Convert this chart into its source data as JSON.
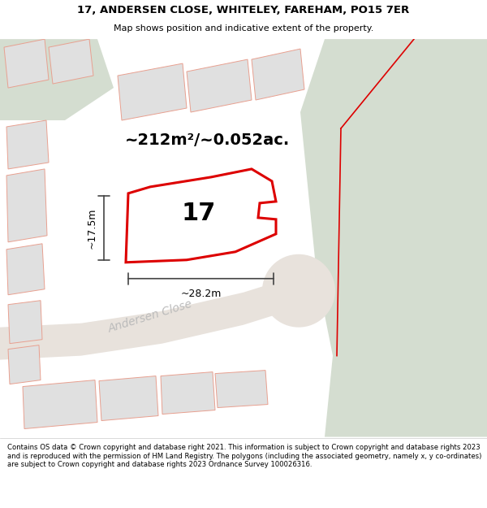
{
  "title_line1": "17, ANDERSEN CLOSE, WHITELEY, FAREHAM, PO15 7ER",
  "title_line2": "Map shows position and indicative extent of the property.",
  "area_label": "~212m²/~0.052ac.",
  "plot_number": "17",
  "dim_width": "~28.2m",
  "dim_height": "~17.5m",
  "street_label": "Andersen Close",
  "footer_text": "Contains OS data © Crown copyright and database right 2021. This information is subject to Crown copyright and database rights 2023 and is reproduced with the permission of HM Land Registry. The polygons (including the associated geometry, namely x, y co-ordinates) are subject to Crown copyright and database rights 2023 Ordnance Survey 100026316.",
  "bg_map_color": "#f0ece8",
  "green_color": "#d4ddd0",
  "road_color": "#e8e2dc",
  "building_fc": "#e0e0e0",
  "building_ec": "#e8a090",
  "highlight_color": "#dd0000",
  "road_label_color": "#bbbbbb",
  "dim_color": "#444444",
  "title_bg": "#ffffff",
  "footer_bg": "#ffffff"
}
